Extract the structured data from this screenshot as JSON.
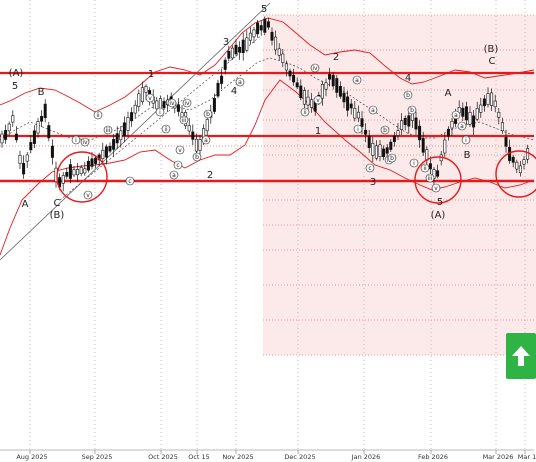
{
  "chart_data": {
    "type": "candlestick",
    "title": "",
    "xlabel": "",
    "ylabel": "",
    "x_ticks": [
      "Aug 2025",
      "Sep 2025",
      "Oct 2025",
      "Oct 15",
      "Nov 2025",
      "Dec 2025",
      "Jan 2026",
      "Feb 2026",
      "Mar 2026",
      "Mar 1"
    ],
    "grid": true,
    "colors": {
      "up_candle": "#ffffff",
      "down_candle": "#111111",
      "support_resistance": "#e8191a",
      "envelope": "#e8191a",
      "forecast_zone": "#fbe3e3",
      "up_button": "#2fb344"
    },
    "wave_labels": [
      "(A)",
      "5",
      "B",
      "A",
      "C",
      "(B)",
      "1",
      "3",
      "4",
      "5",
      "2",
      "2",
      "1",
      "3",
      "4",
      "5",
      "(A)",
      "A",
      "B",
      "(B)",
      "C"
    ],
    "sub_wave_labels": [
      "i",
      "ii",
      "iii",
      "iv",
      "v",
      "a",
      "b",
      "c"
    ],
    "icons": [
      "up-arrow-icon"
    ]
  }
}
